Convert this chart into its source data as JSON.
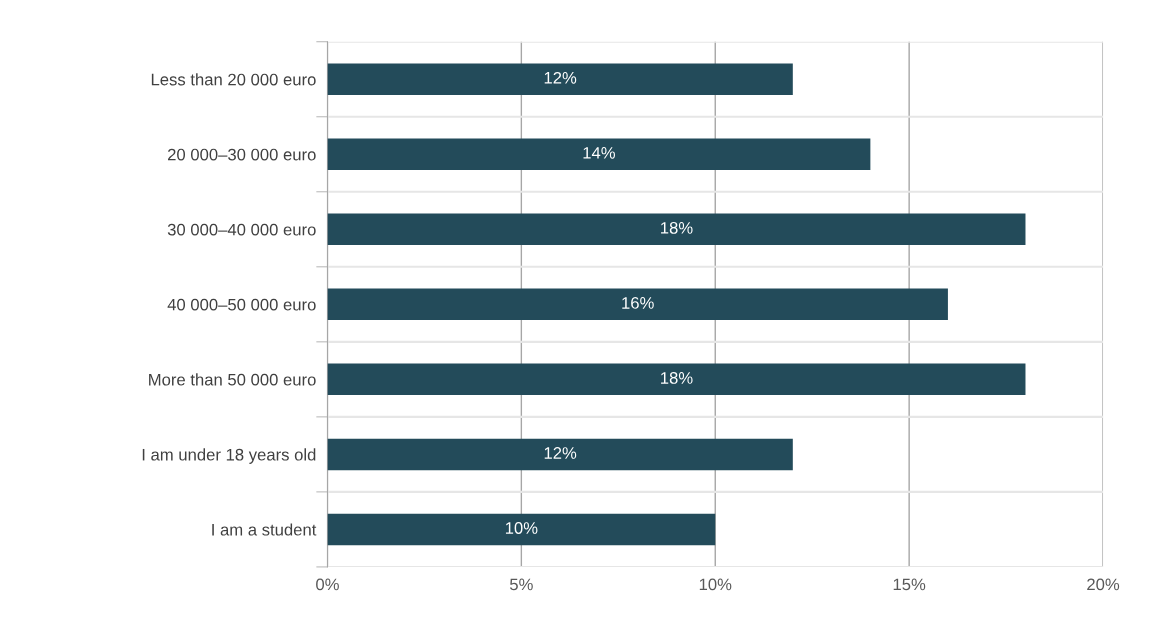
{
  "chart_data": {
    "type": "bar",
    "orientation": "horizontal",
    "categories": [
      "Less than 20 000 euro",
      "20 000–30 000 euro",
      "30 000–40 000 euro",
      "40 000–50 000 euro",
      "More than 50 000 euro",
      "I am under 18 years old",
      "I am a student"
    ],
    "values": [
      12,
      14,
      18,
      16,
      18,
      12,
      10
    ],
    "value_labels": [
      "12%",
      "14%",
      "18%",
      "16%",
      "18%",
      "12%",
      "10%"
    ],
    "color": "#234b5a",
    "xlim": [
      0,
      20
    ],
    "xticks": [
      {
        "value": 0,
        "label": "0%"
      },
      {
        "value": 5,
        "label": "5%"
      },
      {
        "value": 10,
        "label": "10%"
      },
      {
        "value": 15,
        "label": "15%"
      },
      {
        "value": 20,
        "label": "20%"
      }
    ],
    "grid": true,
    "legend": false
  }
}
